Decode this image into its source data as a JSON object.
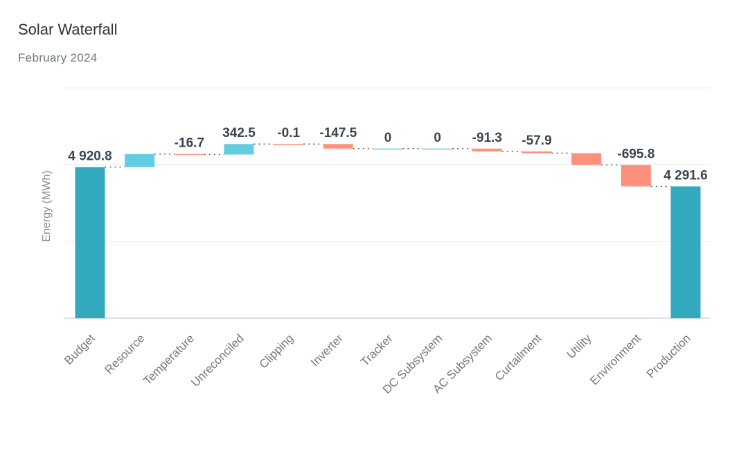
{
  "title": "Solar Waterfall",
  "subtitle": "February 2024",
  "chart_data": {
    "type": "waterfall",
    "title": "Solar Waterfall",
    "subtitle": "February 2024",
    "ylabel": "Energy (MWh)",
    "xlabel": "",
    "ylim": [
      0,
      7500
    ],
    "y_gridlines": [
      0,
      2500,
      5000,
      7500
    ],
    "y_tick_labels_shown": false,
    "grid": true,
    "categories": [
      "Budget",
      "Resource",
      "Temperature",
      "Unreconciled",
      "Clipping",
      "Inverter",
      "Tracker",
      "DC Subsystem",
      "AC Subsystem",
      "Curtailment",
      "Utility",
      "Environment",
      "Production"
    ],
    "kinds": [
      "total",
      "delta",
      "delta",
      "delta",
      "delta",
      "delta",
      "delta",
      "delta",
      "delta",
      "delta",
      "delta",
      "delta",
      "total"
    ],
    "values": [
      4920.8,
      423.6,
      -16.7,
      342.5,
      -0.1,
      -147.5,
      0,
      0,
      -91.3,
      -57.9,
      -386.0,
      -695.8,
      4291.6
    ],
    "data_labels": [
      "4 920.8",
      "",
      "-16.7",
      "342.5",
      "-0.1",
      "-147.5",
      "0",
      "0",
      "-91.3",
      "-57.9",
      "",
      "-695.8",
      "4 291.6"
    ],
    "colors": {
      "total": "#33a9bd",
      "increase": "#62cde0",
      "decrease": "#fd917c",
      "grid": "#e3e8ec",
      "connector": "#555555"
    }
  }
}
